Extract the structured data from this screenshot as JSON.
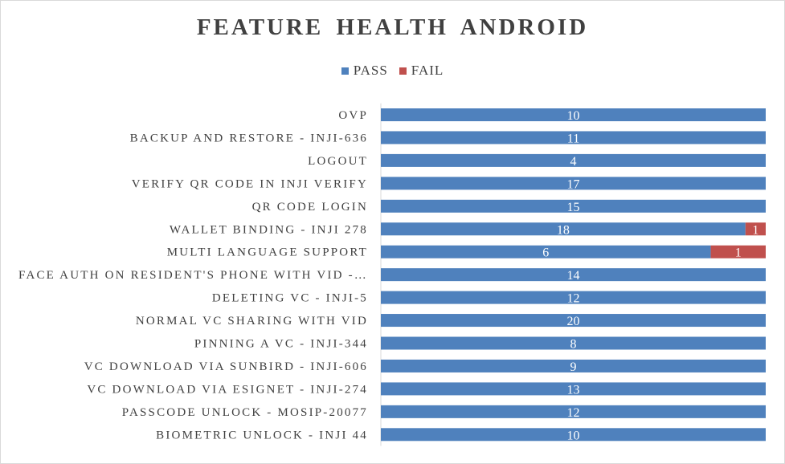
{
  "chart_data": {
    "type": "bar",
    "orientation": "horizontal",
    "stacked": "100%",
    "title": "FEATURE HEALTH ANDROID",
    "legend": {
      "position": "top"
    },
    "grid": false,
    "categories": [
      "OVP",
      "BACKUP AND RESTORE - INJI-636",
      "LOGOUT",
      "VERIFY QR CODE IN INJI VERIFY",
      "QR CODE LOGIN",
      "WALLET BINDING - INJI 278",
      "MULTI LANGUAGE SUPPORT",
      "FACE AUTH ON RESIDENT'S PHONE WITH VID -…",
      "DELETING VC - INJI-5",
      "NORMAL VC SHARING WITH VID",
      "PINNING A VC - INJI-344",
      "VC DOWNLOAD VIA SUNBIRD - INJI-606",
      "VC DOWNLOAD VIA ESIGNET - INJI-274",
      "PASSCODE UNLOCK - MOSIP-20077",
      "BIOMETRIC UNLOCK - INJI 44"
    ],
    "series": [
      {
        "name": "PASS",
        "color": "#4f81bd",
        "values": [
          10,
          11,
          4,
          17,
          15,
          18,
          6,
          14,
          12,
          20,
          8,
          9,
          13,
          12,
          10
        ]
      },
      {
        "name": "FAIL",
        "color": "#c0504d",
        "values": [
          0,
          0,
          0,
          0,
          0,
          1,
          1,
          0,
          0,
          0,
          0,
          0,
          0,
          0,
          0
        ]
      }
    ],
    "xlim": [
      0,
      100
    ]
  }
}
